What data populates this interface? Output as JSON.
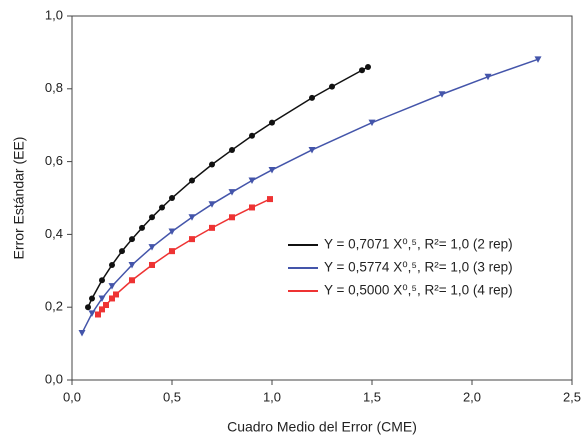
{
  "chart_data": {
    "type": "line",
    "x_label": "Cuadro Medio del Error (CME)",
    "y_label": "Error Estándar (EE)",
    "xlim": [
      0,
      2.5
    ],
    "xticks": [
      {
        "value": 0,
        "label": "0,0"
      },
      {
        "value": 0.5,
        "label": "0,5"
      },
      {
        "value": 1,
        "label": "1,0"
      },
      {
        "value": 1.5,
        "label": "1,5"
      },
      {
        "value": 2,
        "label": "2,0"
      },
      {
        "value": 2.5,
        "label": "2,5"
      }
    ],
    "ylim": [
      0,
      1
    ],
    "yticks": [
      {
        "value": 0,
        "label": "0,0"
      },
      {
        "value": 0.2,
        "label": "0,2"
      },
      {
        "value": 0.4,
        "label": "0,4"
      },
      {
        "value": 0.6,
        "label": "0,6"
      },
      {
        "value": 0.8,
        "label": "0,8"
      },
      {
        "value": 1,
        "label": "1,0"
      }
    ],
    "grid": false,
    "legend": "right",
    "series": [
      {
        "name": "Y = 0,7071 X⁰,⁵, R²= 1,0 (2 rep)",
        "color": "#111111",
        "marker": "circle",
        "x": [
          0.08,
          0.1,
          0.15,
          0.2,
          0.25,
          0.3,
          0.35,
          0.4,
          0.45,
          0.5,
          0.6,
          0.7,
          0.8,
          0.9,
          1.0,
          1.2,
          1.3,
          1.45,
          1.48
        ],
        "values": [
          0.2,
          0.224,
          0.274,
          0.316,
          0.354,
          0.387,
          0.418,
          0.447,
          0.474,
          0.5,
          0.548,
          0.592,
          0.632,
          0.671,
          0.707,
          0.775,
          0.806,
          0.851,
          0.86
        ]
      },
      {
        "name": "Y = 0,5774 X⁰,⁵, R²= 1,0 (3 rep)",
        "color": "#4455aa",
        "marker": "triangle",
        "x": [
          0.05,
          0.1,
          0.15,
          0.2,
          0.3,
          0.4,
          0.5,
          0.6,
          0.7,
          0.8,
          0.9,
          1.0,
          1.2,
          1.5,
          1.85,
          2.08,
          2.33
        ],
        "values": [
          0.129,
          0.183,
          0.224,
          0.258,
          0.316,
          0.365,
          0.408,
          0.447,
          0.483,
          0.516,
          0.548,
          0.577,
          0.632,
          0.707,
          0.785,
          0.833,
          0.881
        ]
      },
      {
        "name": "Y = 0,5000 X⁰,⁵, R²= 1,0 (4 rep)",
        "color": "#ee3333",
        "marker": "square",
        "x": [
          0.13,
          0.15,
          0.17,
          0.2,
          0.22,
          0.3,
          0.4,
          0.5,
          0.6,
          0.7,
          0.8,
          0.9,
          0.99
        ],
        "values": [
          0.18,
          0.194,
          0.206,
          0.224,
          0.235,
          0.274,
          0.316,
          0.354,
          0.387,
          0.418,
          0.447,
          0.474,
          0.497
        ]
      }
    ]
  }
}
